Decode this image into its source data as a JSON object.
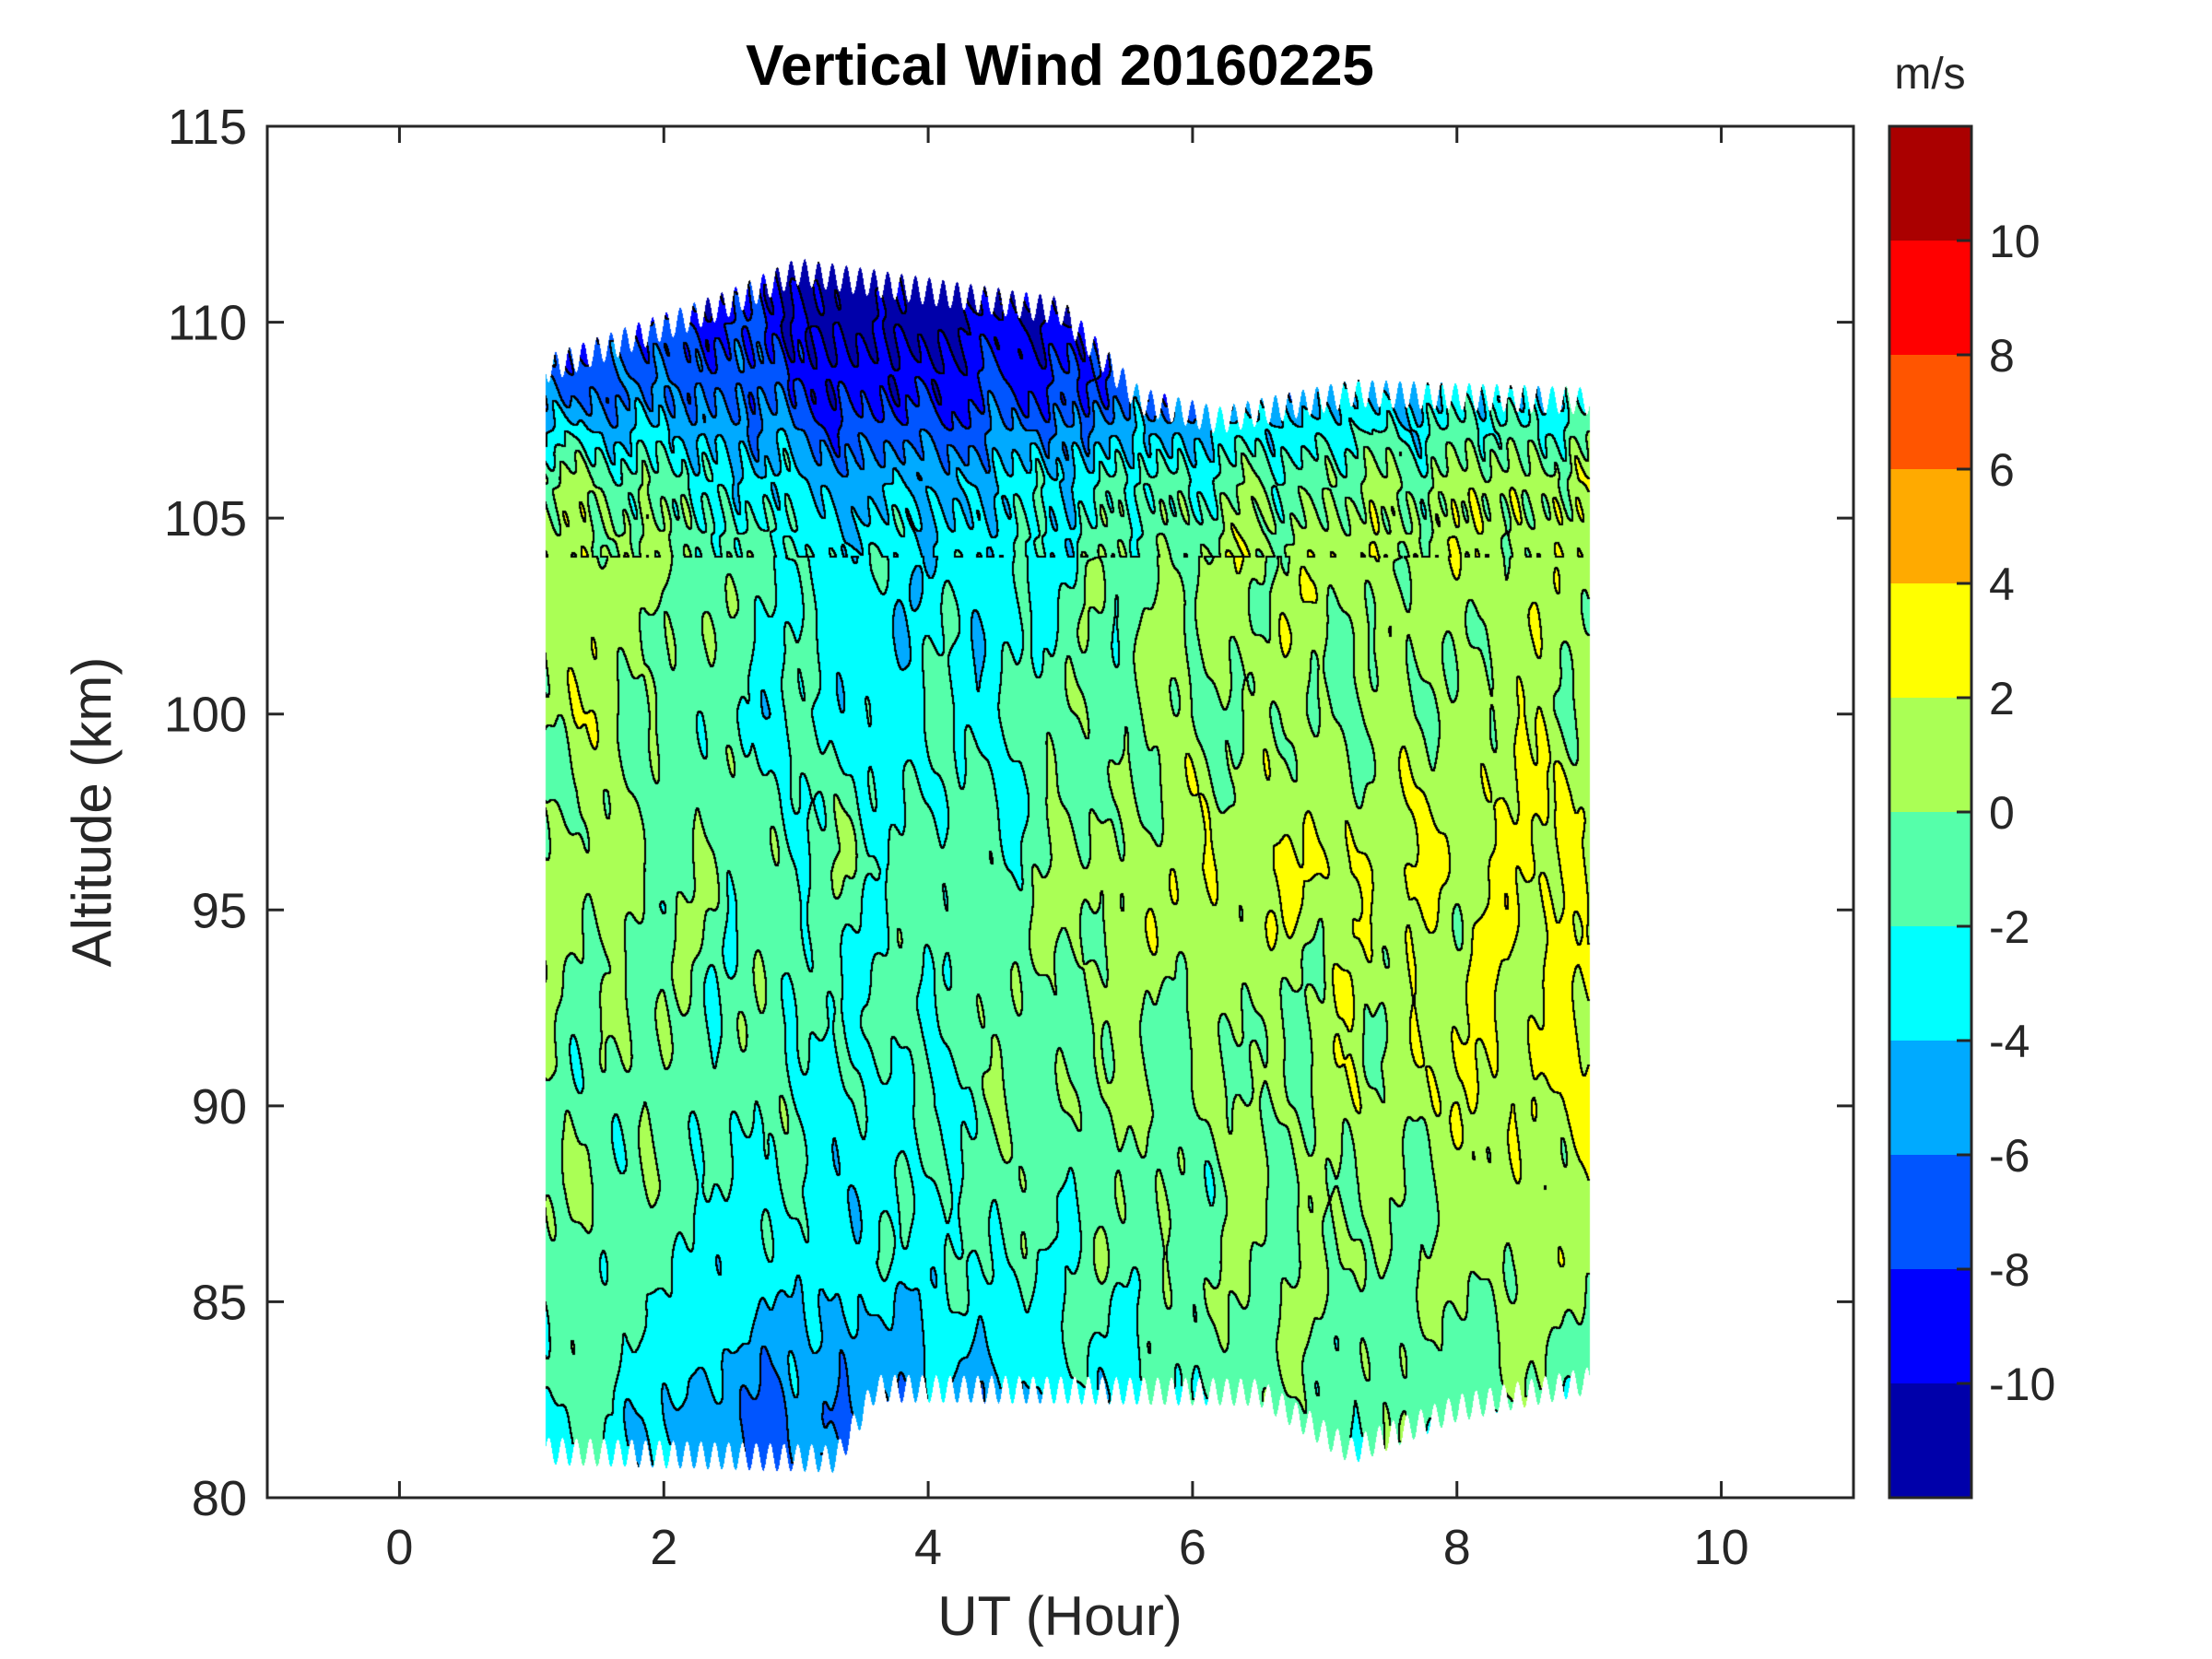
{
  "chart_data": {
    "type": "heatmap",
    "subtype": "filled-contour",
    "title": "Vertical Wind 20160225",
    "xlabel": "UT (Hour)",
    "ylabel": "Altitude (km)",
    "xlim": [
      -1,
      11
    ],
    "ylim": [
      80,
      115
    ],
    "xticks": [
      0,
      2,
      4,
      6,
      8,
      10
    ],
    "yticks": [
      80,
      85,
      90,
      95,
      100,
      105,
      110,
      115
    ],
    "colorbar": {
      "label": "m/s",
      "range": [
        -12,
        12
      ],
      "levels": [
        -12,
        -10,
        -8,
        -6,
        -4,
        -2,
        0,
        2,
        4,
        6,
        8,
        10,
        12
      ],
      "ticks": [
        -10,
        -8,
        -6,
        -4,
        -2,
        0,
        2,
        4,
        6,
        8,
        10
      ],
      "colors": [
        "#0000AA",
        "#0000FF",
        "#0055FF",
        "#00AAFF",
        "#00FFFF",
        "#55FFAA",
        "#AAFF55",
        "#FFFF00",
        "#FFAA00",
        "#FF5500",
        "#FF0000",
        "#AA0000"
      ]
    },
    "grid": false,
    "x": [
      1.5,
      2.5,
      3.5,
      4.5,
      5.5,
      6.5,
      7.5,
      8.5
    ],
    "altitude": [
      82,
      84,
      86,
      88,
      90,
      92,
      94,
      96,
      98,
      100,
      102,
      104,
      106,
      108
    ],
    "values": [
      [
        -2,
        -6,
        -6,
        -5,
        -3,
        -1,
        -1,
        -1
      ],
      [
        -1,
        -4,
        -5,
        -3,
        -2,
        0,
        -1,
        0
      ],
      [
        -1,
        -3,
        -3,
        -2,
        -1,
        0,
        0,
        1
      ],
      [
        0,
        -2,
        -3,
        -1,
        -1,
        0,
        0,
        1
      ],
      [
        -1,
        -1,
        -3,
        -1,
        0,
        0,
        1,
        2
      ],
      [
        0,
        -1,
        -2,
        -1,
        0,
        0,
        1,
        2
      ],
      [
        0,
        -1,
        -2,
        -1,
        1,
        1,
        1,
        2
      ],
      [
        1,
        -1,
        -1,
        -1,
        1,
        2,
        2,
        2
      ],
      [
        0,
        -1,
        -2,
        -2,
        0,
        1,
        1,
        2
      ],
      [
        1,
        -2,
        -3,
        -2,
        0,
        0,
        0,
        1
      ],
      [
        1,
        -1,
        -3,
        -3,
        0,
        1,
        0,
        1
      ],
      [
        1,
        -1,
        -3,
        -3,
        -1,
        1,
        1,
        1
      ],
      [
        0,
        -3,
        -5,
        -4,
        -2,
        -1,
        0,
        1
      ],
      [
        -6,
        -6,
        -9,
        -8,
        -7,
        -5,
        -4,
        -3
      ]
    ],
    "data_extent": {
      "x_range": [
        1.1,
        9.0
      ],
      "top_altitude": [
        [
          1.1,
          108.8
        ],
        [
          2.5,
          110.5
        ],
        [
          3.0,
          111.3
        ],
        [
          5.0,
          110.3
        ],
        [
          5.6,
          108
        ],
        [
          6.2,
          107.5
        ],
        [
          7.2,
          108.2
        ],
        [
          9.0,
          108
        ]
      ],
      "bottom_altitude": [
        [
          1.1,
          81.2
        ],
        [
          3.3,
          81.0
        ],
        [
          3.6,
          82.8
        ],
        [
          6.5,
          82.7
        ],
        [
          7.2,
          81.2
        ],
        [
          8.0,
          82.3
        ],
        [
          9.0,
          83.0
        ]
      ]
    }
  }
}
